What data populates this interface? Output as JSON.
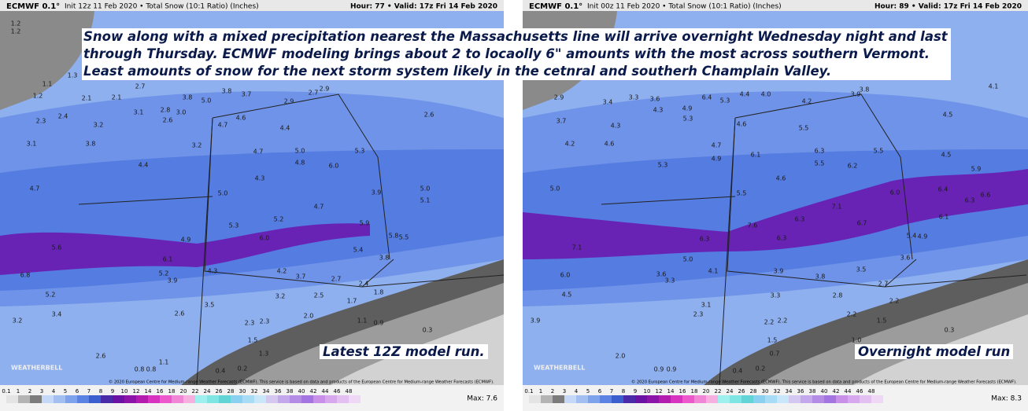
{
  "caption": "Snow along with a mixed precipitation nearest the Massachusetts line will arrive overnight Wednesday night and last through Thursday. ECMWF modeling brings about 2 to locaolly 6\" amounts with the most across southern Vermont. Least amounts of snow for the next storm system likely in the cetnral and southerh Champlain Valley.",
  "panels": [
    {
      "model": "ECMWF 0.1°",
      "product": "Init 12z 11 Feb 2020 • Total Snow (10:1 Ratio) (Inches)",
      "valid": "Hour: 77 • Valid: 17z Fri 14 Feb 2020",
      "note": "Latest 12Z model run.",
      "logo": "WEATHERBELL",
      "copyright": "© 2020 European Centre for Medium-range Weather Forecasts (ECMWF). This service is based on data and products of the European Centre for Medium-range Weather Forecasts (ECMWF).",
      "max": "Max: 7.6",
      "map_labels": [
        "1.2",
        "1.2",
        "1.3",
        "1.1",
        "1.2",
        "2.1",
        "2.1",
        "2.7",
        "2.8",
        "3.0",
        "3.8",
        "5.0",
        "3.8",
        "3.7",
        "2.9",
        "2.7",
        "2.9",
        "2.3",
        "2.4",
        "3.2",
        "3.1",
        "2.6",
        "4.7",
        "4.6",
        "4.4",
        "2.6",
        "3.1",
        "3.8",
        "3.2",
        "5.0",
        "5.3",
        "4.8",
        "6.0",
        "4.7",
        "4.4",
        "4.3",
        "4.7",
        "5.0",
        "3.9",
        "5.0",
        "5.1",
        "4.7",
        "5.2",
        "5.9",
        "5.3",
        "6.0",
        "5.8",
        "5.5",
        "5.6",
        "4.9",
        "5.4",
        "6.1",
        "3.8",
        "4.2",
        "3.7",
        "2.7",
        "2.4",
        "6.8",
        "5.2",
        "3.9",
        "4.3",
        "5.2",
        "3.5",
        "3.2",
        "2.5",
        "1.7",
        "1.8",
        "3.4",
        "2.6",
        "2.0",
        "3.2",
        "2.3",
        "2.3",
        "1.1",
        "0.9",
        "0.3",
        "1.5",
        "1.3",
        "2.6",
        "1.1",
        "0.8",
        "0.8",
        "0.4",
        "0.2"
      ]
    },
    {
      "model": "ECMWF 0.1°",
      "product": "Init 00z 11 Feb 2020 • Total Snow (10:1 Ratio) (Inches)",
      "valid": "Hour: 89 • Valid: 17z Fri 14 Feb 2020",
      "note": "Overnight model run",
      "logo": "WEATHERBELL",
      "copyright": "© 2020 European Centre for Medium-range Weather Forecasts (ECMWF). This service is based on data and products of the European Centre for Medium-range Weather Forecasts (ECMWF).",
      "max": "Max: 8.3",
      "map_labels": [
        "2.9",
        "3.4",
        "3.3",
        "3.6",
        "4.9",
        "6.4",
        "5.3",
        "4.4",
        "4.0",
        "4.2",
        "3.9",
        "3.8",
        "4.1",
        "3.7",
        "4.3",
        "4.3",
        "5.3",
        "4.6",
        "5.5",
        "4.5",
        "4.2",
        "4.6",
        "4.7",
        "6.1",
        "6.3",
        "5.5",
        "4.9",
        "5.5",
        "6.2",
        "5.3",
        "4.6",
        "5.0",
        "5.5",
        "4.5",
        "5.9",
        "6.0",
        "6.4",
        "6.6",
        "6.3",
        "6.1",
        "7.1",
        "6.3",
        "6.7",
        "7.6",
        "6.3",
        "6.3",
        "5.4",
        "4.9",
        "7.1",
        "5.0",
        "3.6",
        "6.0",
        "3.6",
        "4.1",
        "3.3",
        "3.9",
        "3.8",
        "3.5",
        "2.7",
        "4.5",
        "3.1",
        "3.3",
        "2.8",
        "2.2",
        "2.3",
        "2.2",
        "2.2",
        "2.2",
        "1.5",
        "3.9",
        "1.5",
        "1.0",
        "0.3",
        "0.7",
        "2.0",
        "0.9",
        "0.9",
        "0.4",
        "0.2"
      ]
    }
  ],
  "colorbar": {
    "labels": [
      "0.1",
      "1",
      "2",
      "3",
      "4",
      "5",
      "6",
      "7",
      "8",
      "9",
      "10",
      "12",
      "14",
      "16",
      "18",
      "20",
      "22",
      "24",
      "26",
      "28",
      "30",
      "32",
      "34",
      "36",
      "38",
      "40",
      "42",
      "44",
      "46",
      "48"
    ],
    "colors": [
      "#e4e4e4",
      "#b4b4b4",
      "#7c7c7c",
      "#c6d8f7",
      "#a3bff2",
      "#7fa2ec",
      "#5c82e3",
      "#3c5fcf",
      "#4a2aa8",
      "#6a12a4",
      "#8c14a8",
      "#b41cb0",
      "#d832c0",
      "#ec58cc",
      "#f286d6",
      "#f6b0e0",
      "#9ef0ee",
      "#7ee4e4",
      "#62d4d6",
      "#8ad0f0",
      "#a8dcf6",
      "#c8e8fa",
      "#d4c8f0",
      "#c4a8ec",
      "#b48ce6",
      "#a474e0",
      "#c890e8",
      "#d8a8ee",
      "#e4c0f2",
      "#eed8f6"
    ]
  }
}
